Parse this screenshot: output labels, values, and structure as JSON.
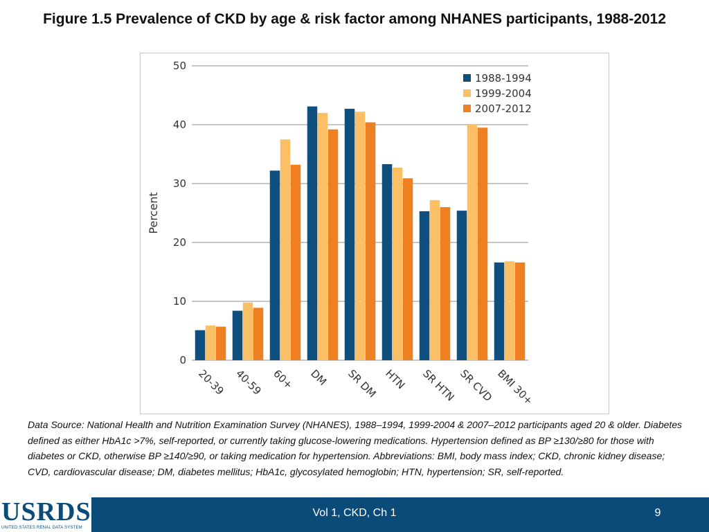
{
  "slide": {
    "title": "Figure 1.5 Prevalence of CKD by age & risk factor among NHANES participants, 1988-2012",
    "source_note": "Data Source: National Health and Nutrition Examination Survey (NHANES), 1988–1994, 1999-2004 & 2007–2012 participants aged 20 & older. Diabetes defined as either HbA1c >7%, self-reported, or currently taking glucose-lowering medications. Hypertension defined as BP ≥130/≥80 for those with diabetes or CKD, otherwise BP ≥140/≥90, or taking medication for hypertension. Abbreviations: BMI, body mass index; CKD, chronic kidney disease; CVD, cardiovascular disease; DM, diabetes mellitus; HbA1c, glycosylated hemoglobin; HTN, hypertension; SR, self-reported."
  },
  "footer": {
    "logo_text": "USRDS",
    "logo_subtext": "UNITED STATES RENAL DATA SYSTEM",
    "label": "Vol 1, CKD, Ch 1",
    "page_number": "9"
  },
  "colors": {
    "footer_bg": "#0b4b7a",
    "gridline": "#8c8c8c"
  },
  "chart_data": {
    "type": "bar",
    "title": "",
    "xlabel": "",
    "ylabel": "Percent",
    "ylim": [
      0,
      50
    ],
    "yticks": [
      0,
      10,
      20,
      30,
      40,
      50
    ],
    "grid": true,
    "legend_position": "top-right",
    "categories": [
      "20-39",
      "40-59",
      "60+",
      "DM",
      "SR DM",
      "HTN",
      "SR HTN",
      "SR CVD",
      "BMI 30+"
    ],
    "series": [
      {
        "name": "1988-1994",
        "color": "#0e4f7d",
        "values": [
          5.1,
          8.4,
          32.2,
          43.1,
          42.7,
          33.3,
          25.3,
          25.4,
          16.6
        ]
      },
      {
        "name": "1999-2004",
        "color": "#fbbf65",
        "values": [
          5.9,
          9.8,
          37.5,
          42.0,
          42.2,
          32.7,
          27.2,
          40.0,
          16.8
        ]
      },
      {
        "name": "2007-2012",
        "color": "#ee8022",
        "values": [
          5.7,
          8.9,
          33.2,
          39.2,
          40.4,
          30.9,
          26.0,
          39.5,
          16.6
        ]
      }
    ]
  }
}
